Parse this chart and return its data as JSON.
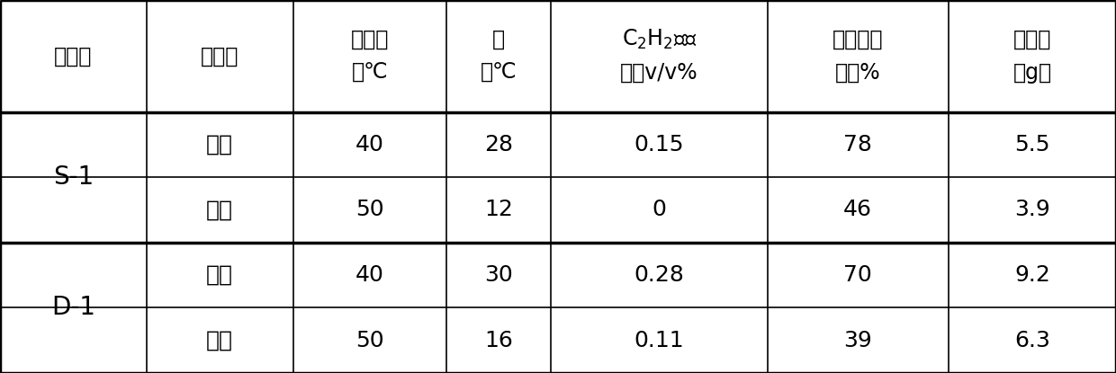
{
  "header_col0_line1": "傅化剂",
  "header_col1_line1": "反应器",
  "header_col2_line1": "入口温",
  "header_col2_line2": "度℃",
  "header_col3_line1": "温",
  "header_col3_line2": "升℃",
  "header_col4_line1": "C₂H₂残余",
  "header_col4_line2": "量，v/v%",
  "header_col5_line1": "加氢选择",
  "header_col5_line2": "性，%",
  "header_col6_line1": "绻油量",
  "header_col6_line2": "（g）",
  "rows": [
    [
      "S-1",
      "一段",
      "40",
      "28",
      "0.15",
      "78",
      "5.5"
    ],
    [
      "",
      "二段",
      "50",
      "12",
      "0",
      "46",
      "3.9"
    ],
    [
      "D-1",
      "一段",
      "40",
      "30",
      "0.28",
      "70",
      "9.2"
    ],
    [
      "",
      "二段",
      "50",
      "16",
      "0.11",
      "39",
      "6.3"
    ]
  ],
  "col_widths_rel": [
    1.05,
    1.05,
    1.1,
    0.75,
    1.55,
    1.3,
    1.2
  ],
  "background_color": "#ffffff",
  "text_color": "#000000",
  "line_color": "#000000",
  "lw_outer": 2.5,
  "lw_inner": 1.2,
  "font_size_header": 17,
  "font_size_body": 18,
  "font_size_catalyst": 20
}
